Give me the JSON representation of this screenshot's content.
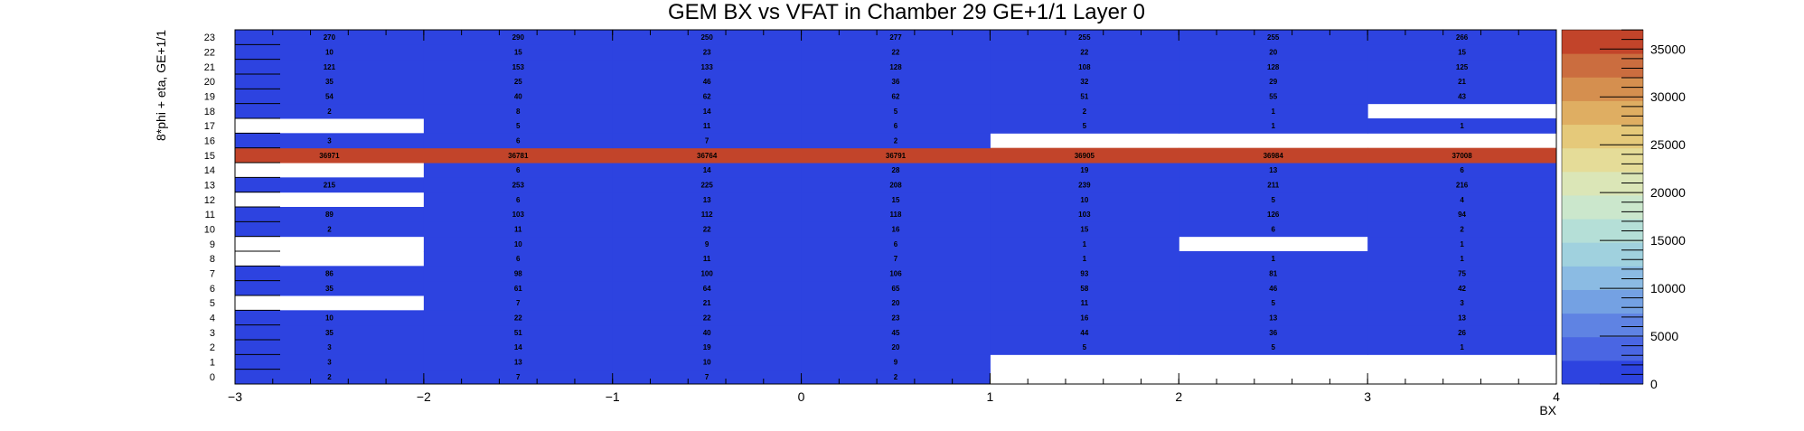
{
  "chart_data": {
    "type": "heatmap",
    "title": "GEM BX vs VFAT in Chamber 29 GE+1/1 Layer 0",
    "xlabel": "BX",
    "ylabel": "8*phi + eta, GE+1/1",
    "x_bins": [
      -3,
      -2,
      -1,
      0,
      1,
      2,
      3,
      4
    ],
    "x_ticks": [
      "−3",
      "−2",
      "−1",
      "0",
      "1",
      "2",
      "3",
      "4"
    ],
    "y_ticks": [
      "0",
      "1",
      "2",
      "3",
      "4",
      "5",
      "6",
      "7",
      "8",
      "9",
      "10",
      "11",
      "12",
      "13",
      "14",
      "15",
      "16",
      "17",
      "18",
      "19",
      "20",
      "21",
      "22",
      "23"
    ],
    "xlim": [
      -3,
      4
    ],
    "ylim": [
      0,
      24
    ],
    "z_range": [
      0,
      37008
    ],
    "colorbar_ticks": [
      "0",
      "5000",
      "10000",
      "15000",
      "20000",
      "25000",
      "30000",
      "35000"
    ],
    "colorbar_tick_values": [
      0,
      5000,
      10000,
      15000,
      20000,
      25000,
      30000,
      35000
    ],
    "values": [
      [
        2,
        7,
        7,
        2,
        null,
        null,
        null
      ],
      [
        3,
        13,
        10,
        9,
        null,
        null,
        null
      ],
      [
        3,
        14,
        19,
        20,
        5,
        5,
        1
      ],
      [
        35,
        51,
        40,
        45,
        44,
        36,
        26
      ],
      [
        10,
        22,
        22,
        23,
        16,
        13,
        13
      ],
      [
        null,
        7,
        21,
        20,
        11,
        5,
        3
      ],
      [
        35,
        61,
        64,
        65,
        58,
        46,
        42
      ],
      [
        86,
        98,
        100,
        106,
        93,
        81,
        75
      ],
      [
        null,
        6,
        11,
        7,
        1,
        1,
        1
      ],
      [
        null,
        10,
        9,
        6,
        1,
        null,
        1
      ],
      [
        2,
        11,
        22,
        16,
        15,
        6,
        2
      ],
      [
        89,
        103,
        112,
        118,
        103,
        126,
        94
      ],
      [
        null,
        6,
        13,
        15,
        10,
        5,
        4
      ],
      [
        215,
        253,
        225,
        208,
        239,
        211,
        216
      ],
      [
        null,
        6,
        14,
        28,
        19,
        13,
        6
      ],
      [
        36971,
        36781,
        36764,
        36791,
        36905,
        36984,
        37008
      ],
      [
        3,
        6,
        7,
        2,
        null,
        null,
        null
      ],
      [
        null,
        5,
        11,
        6,
        5,
        1,
        1
      ],
      [
        2,
        8,
        14,
        5,
        2,
        1,
        null
      ],
      [
        54,
        40,
        62,
        62,
        51,
        55,
        43
      ],
      [
        35,
        25,
        46,
        36,
        32,
        29,
        21
      ],
      [
        121,
        153,
        133,
        128,
        108,
        128,
        125
      ],
      [
        10,
        15,
        23,
        22,
        22,
        20,
        15
      ],
      [
        270,
        290,
        250,
        277,
        255,
        255,
        266
      ]
    ],
    "colors": {
      "low": "#2d43e0",
      "high": "#c2442a",
      "empty": "#ffffff",
      "palette": [
        "#2d43e0",
        "#4a66e3",
        "#5f83e3",
        "#74a1e3",
        "#8bbbe3",
        "#a0d1de",
        "#b5dfd7",
        "#cbe7cc",
        "#dbe6b7",
        "#e5dc98",
        "#e5c97a",
        "#dfae62",
        "#d58f4f",
        "#cb6d3f",
        "#c2442a"
      ]
    }
  }
}
